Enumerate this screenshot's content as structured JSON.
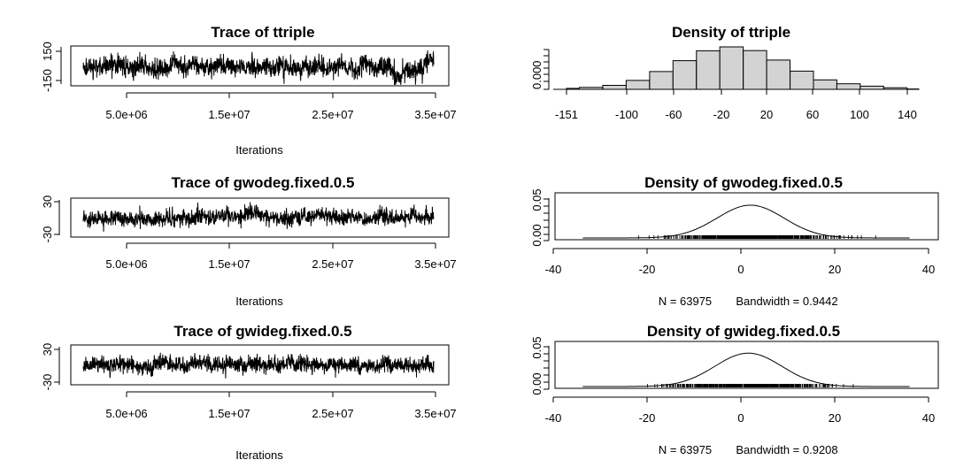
{
  "chart_data": [
    {
      "type": "line",
      "title": "Trace of ttriple",
      "xlabel": "Iterations",
      "xticks": [
        "5.0e+06",
        "1.5e+07",
        "2.5e+07",
        "3.5e+07"
      ],
      "xtick_values": [
        5000000,
        15000000,
        25000000,
        35000000
      ],
      "xlim": [
        1000000,
        34500000
      ],
      "yticks": [
        "-150",
        "150"
      ],
      "ytick_values": [
        -150,
        150
      ],
      "ylim": [
        -170,
        180
      ],
      "series_summary": {
        "center": 0,
        "typical_spread": 45,
        "points": 1500,
        "late_shift": true
      }
    },
    {
      "type": "bar",
      "title": "Density of ttriple",
      "xticks": [
        "-151",
        "-100",
        "-60",
        "-20",
        "20",
        "60",
        "100",
        "140"
      ],
      "xtick_values": [
        -151,
        -100,
        -60,
        -20,
        20,
        60,
        100,
        140
      ],
      "xlim": [
        -151,
        150
      ],
      "yticks": [
        "0.000"
      ],
      "ytick_values": [
        0
      ],
      "bin_edges": [
        -151,
        -140,
        -120,
        -100,
        -80,
        -60,
        -40,
        -20,
        0,
        20,
        40,
        60,
        80,
        100,
        120,
        140,
        150
      ],
      "values": [
        0.0005,
        0.001,
        0.002,
        0.0045,
        0.009,
        0.0145,
        0.0195,
        0.0215,
        0.0196,
        0.0148,
        0.0092,
        0.0048,
        0.0028,
        0.0016,
        0.0008,
        0.0002
      ]
    },
    {
      "type": "line",
      "title": "Trace of gwodeg.fixed.0.5",
      "xlabel": "Iterations",
      "xticks": [
        "5.0e+06",
        "1.5e+07",
        "2.5e+07",
        "3.5e+07"
      ],
      "xtick_values": [
        5000000,
        15000000,
        25000000,
        35000000
      ],
      "xlim": [
        1000000,
        34500000
      ],
      "yticks": [
        "-30",
        "30"
      ],
      "ytick_values": [
        -30,
        30
      ],
      "ylim": [
        -38,
        38
      ],
      "series_summary": {
        "center": 0,
        "typical_spread": 8,
        "points": 1500
      }
    },
    {
      "type": "line",
      "title": "Density of gwodeg.fixed.0.5",
      "xticks": [
        "-40",
        "-20",
        "0",
        "20",
        "40"
      ],
      "xtick_values": [
        -40,
        -20,
        0,
        20,
        40
      ],
      "xlim": [
        -42,
        42
      ],
      "yticks": [
        "0.00",
        "0.05"
      ],
      "ytick_values": [
        0,
        0.05
      ],
      "ylim": [
        -0.002,
        0.06
      ],
      "n": "N = 63975",
      "bandwidth": "Bandwidth = 0.9442",
      "density": {
        "mean": 1,
        "sd": 7.8,
        "peak": 0.051
      }
    },
    {
      "type": "line",
      "title": "Trace of gwideg.fixed.0.5",
      "xlabel": "Iterations",
      "xticks": [
        "5.0e+06",
        "1.5e+07",
        "2.5e+07",
        "3.5e+07"
      ],
      "xtick_values": [
        5000000,
        15000000,
        25000000,
        35000000
      ],
      "xlim": [
        1000000,
        34500000
      ],
      "yticks": [
        "-30",
        "30"
      ],
      "ytick_values": [
        -30,
        30
      ],
      "ylim": [
        -38,
        38
      ],
      "series_summary": {
        "center": 0,
        "typical_spread": 8,
        "points": 1500
      }
    },
    {
      "type": "line",
      "title": "Density of gwideg.fixed.0.5",
      "xticks": [
        "-40",
        "-20",
        "0",
        "20",
        "40"
      ],
      "xtick_values": [
        -40,
        -20,
        0,
        20,
        40
      ],
      "xlim": [
        -42,
        42
      ],
      "yticks": [
        "0.00",
        "0.05"
      ],
      "ytick_values": [
        0,
        0.05
      ],
      "ylim": [
        -0.002,
        0.06
      ],
      "n": "N = 63975",
      "bandwidth": "Bandwidth = 0.9208",
      "density": {
        "mean": 0.5,
        "sd": 7.8,
        "peak": 0.052
      }
    }
  ]
}
